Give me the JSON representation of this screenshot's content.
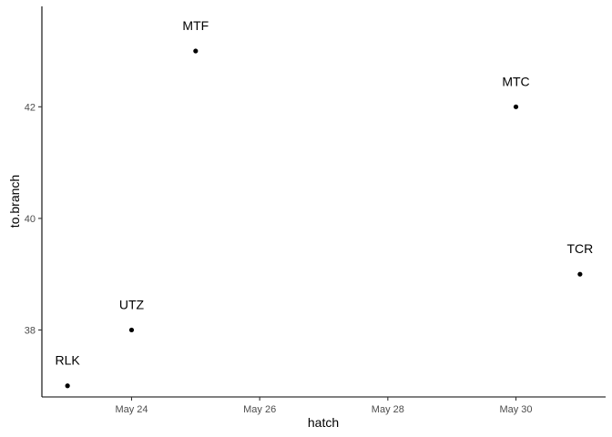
{
  "chart_data": {
    "type": "scatter",
    "title": "",
    "xlabel": "hatch",
    "ylabel": "to.branch",
    "x_scale": "date",
    "xlim": [
      "2023-05-22-ish",
      "2023-05-31-ish"
    ],
    "ylim": [
      36.8,
      43.8
    ],
    "x_ticks": [
      "May 24",
      "May 26",
      "May 28",
      "May 30"
    ],
    "y_ticks": [
      38,
      40,
      42
    ],
    "grid": false,
    "colors": {
      "point": "#000000",
      "axis": "#000000",
      "tick_text": "#4d4d4d"
    },
    "points": [
      {
        "x": "May 23",
        "y": 37,
        "label": "RLK"
      },
      {
        "x": "May 24",
        "y": 38,
        "label": "UTZ"
      },
      {
        "x": "May 25",
        "y": 43,
        "label": "MTF"
      },
      {
        "x": "May 30",
        "y": 42,
        "label": "MTC"
      },
      {
        "x": "May 31",
        "y": 39,
        "label": "TCR"
      }
    ]
  }
}
